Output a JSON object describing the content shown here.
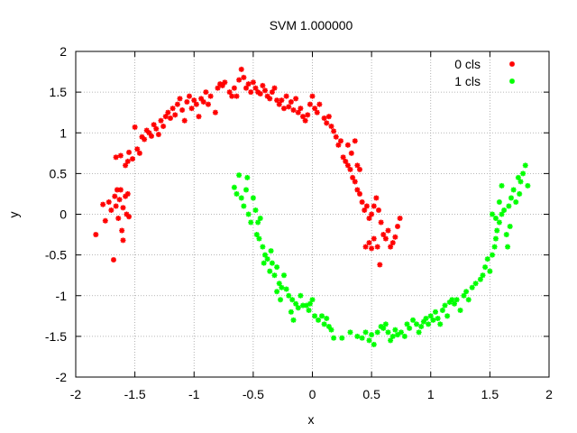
{
  "chart_data": {
    "type": "scatter",
    "title": "SVM 1.000000",
    "xlabel": "x",
    "ylabel": "y",
    "xlim": [
      -2,
      2
    ],
    "ylim": [
      -2,
      2
    ],
    "xticks": [
      "-2",
      "-1.5",
      "-1",
      "-0.5",
      "0",
      "0.5",
      "1",
      "1.5",
      "2"
    ],
    "yticks": [
      "-2",
      "-1.5",
      "-1",
      "-0.5",
      "0",
      "0.5",
      "1",
      "1.5",
      "2"
    ],
    "grid": true,
    "legend_position": "top-right",
    "series": [
      {
        "name": "0 cls",
        "color": "#ff0000",
        "points": [
          [
            -1.83,
            -0.25
          ],
          [
            -1.77,
            0.12
          ],
          [
            -1.75,
            -0.08
          ],
          [
            -1.72,
            0.15
          ],
          [
            -1.7,
            0.05
          ],
          [
            -1.68,
            -0.56
          ],
          [
            -1.67,
            0.22
          ],
          [
            -1.66,
            0.1
          ],
          [
            -1.65,
            0.3
          ],
          [
            -1.64,
            -0.05
          ],
          [
            -1.63,
            0.18
          ],
          [
            -1.62,
            0.3
          ],
          [
            -1.61,
            -0.2
          ],
          [
            -1.6,
            0.08
          ],
          [
            -1.6,
            -0.32
          ],
          [
            -1.58,
            0.22
          ],
          [
            -1.57,
            0.0
          ],
          [
            -1.56,
            0.25
          ],
          [
            -1.55,
            -0.03
          ],
          [
            -1.66,
            0.7
          ],
          [
            -1.62,
            0.72
          ],
          [
            -1.58,
            0.6
          ],
          [
            -1.56,
            0.65
          ],
          [
            -1.55,
            0.76
          ],
          [
            -1.52,
            0.68
          ],
          [
            -1.5,
            1.07
          ],
          [
            -1.48,
            0.8
          ],
          [
            -1.46,
            0.75
          ],
          [
            -1.44,
            0.95
          ],
          [
            -1.42,
            0.92
          ],
          [
            -1.4,
            1.03
          ],
          [
            -1.38,
            1.0
          ],
          [
            -1.36,
            0.96
          ],
          [
            -1.34,
            1.1
          ],
          [
            -1.32,
            1.05
          ],
          [
            -1.3,
            0.98
          ],
          [
            -1.28,
            1.15
          ],
          [
            -1.26,
            1.08
          ],
          [
            -1.24,
            1.2
          ],
          [
            -1.22,
            1.25
          ],
          [
            -1.2,
            1.18
          ],
          [
            -1.18,
            1.3
          ],
          [
            -1.16,
            1.22
          ],
          [
            -1.14,
            1.35
          ],
          [
            -1.12,
            1.42
          ],
          [
            -1.1,
            1.28
          ],
          [
            -1.08,
            1.15
          ],
          [
            -1.06,
            1.38
          ],
          [
            -1.04,
            1.45
          ],
          [
            -1.02,
            1.3
          ],
          [
            -1.0,
            1.4
          ],
          [
            -0.98,
            1.35
          ],
          [
            -0.96,
            1.2
          ],
          [
            -0.94,
            1.42
          ],
          [
            -0.92,
            1.38
          ],
          [
            -0.9,
            1.5
          ],
          [
            -0.88,
            1.35
          ],
          [
            -0.86,
            1.45
          ],
          [
            -0.82,
            1.25
          ],
          [
            -0.8,
            1.55
          ],
          [
            -0.78,
            1.6
          ],
          [
            -0.76,
            1.58
          ],
          [
            -0.74,
            1.62
          ],
          [
            -0.7,
            1.5
          ],
          [
            -0.68,
            1.45
          ],
          [
            -0.66,
            1.55
          ],
          [
            -0.64,
            1.45
          ],
          [
            -0.62,
            1.65
          ],
          [
            -0.6,
            1.78
          ],
          [
            -0.58,
            1.68
          ],
          [
            -0.56,
            1.55
          ],
          [
            -0.54,
            1.6
          ],
          [
            -0.52,
            1.5
          ],
          [
            -0.5,
            1.62
          ],
          [
            -0.48,
            1.55
          ],
          [
            -0.46,
            1.5
          ],
          [
            -0.44,
            1.48
          ],
          [
            -0.42,
            1.58
          ],
          [
            -0.4,
            1.52
          ],
          [
            -0.38,
            1.45
          ],
          [
            -0.36,
            1.42
          ],
          [
            -0.34,
            1.5
          ],
          [
            -0.32,
            1.55
          ],
          [
            -0.3,
            1.4
          ],
          [
            -0.28,
            1.35
          ],
          [
            -0.26,
            1.4
          ],
          [
            -0.24,
            1.3
          ],
          [
            -0.22,
            1.45
          ],
          [
            -0.2,
            1.32
          ],
          [
            -0.18,
            1.38
          ],
          [
            -0.16,
            1.28
          ],
          [
            -0.14,
            1.42
          ],
          [
            -0.12,
            1.25
          ],
          [
            -0.1,
            1.3
          ],
          [
            -0.08,
            1.2
          ],
          [
            -0.06,
            1.15
          ],
          [
            -0.04,
            1.22
          ],
          [
            -0.02,
            1.35
          ],
          [
            0.0,
            1.45
          ],
          [
            0.02,
            1.3
          ],
          [
            0.04,
            1.25
          ],
          [
            0.06,
            1.35
          ],
          [
            0.1,
            1.18
          ],
          [
            0.12,
            1.12
          ],
          [
            0.14,
            1.2
          ],
          [
            0.16,
            1.08
          ],
          [
            0.18,
            1.02
          ],
          [
            0.2,
            0.95
          ],
          [
            0.22,
            0.85
          ],
          [
            0.24,
            0.9
          ],
          [
            0.26,
            0.7
          ],
          [
            0.28,
            0.65
          ],
          [
            0.3,
            0.6
          ],
          [
            0.32,
            0.55
          ],
          [
            0.34,
            0.45
          ],
          [
            0.36,
            0.4
          ],
          [
            0.38,
            0.3
          ],
          [
            0.4,
            0.25
          ],
          [
            0.42,
            0.15
          ],
          [
            0.44,
            0.05
          ],
          [
            0.46,
            0.1
          ],
          [
            0.48,
            -0.05
          ],
          [
            0.5,
            0.0
          ],
          [
            0.52,
            0.1
          ],
          [
            0.54,
            0.2
          ],
          [
            0.56,
            0.05
          ],
          [
            0.58,
            -0.1
          ],
          [
            0.6,
            -0.25
          ],
          [
            0.62,
            -0.3
          ],
          [
            0.64,
            -0.2
          ],
          [
            0.66,
            -0.4
          ],
          [
            0.68,
            -0.35
          ],
          [
            0.7,
            -0.28
          ],
          [
            0.72,
            -0.15
          ],
          [
            0.74,
            -0.05
          ],
          [
            0.45,
            -0.4
          ],
          [
            0.48,
            -0.35
          ],
          [
            0.5,
            -0.42
          ],
          [
            0.52,
            -0.3
          ],
          [
            0.55,
            -0.4
          ],
          [
            0.57,
            -0.62
          ],
          [
            0.38,
            0.6
          ],
          [
            0.4,
            0.55
          ],
          [
            0.36,
            0.9
          ],
          [
            0.33,
            0.75
          ],
          [
            0.3,
            0.85
          ]
        ]
      },
      {
        "name": "1 cls",
        "color": "#00ff00",
        "points": [
          [
            -0.66,
            0.33
          ],
          [
            -0.64,
            0.25
          ],
          [
            -0.62,
            0.48
          ],
          [
            -0.6,
            0.2
          ],
          [
            -0.58,
            0.1
          ],
          [
            -0.56,
            0.3
          ],
          [
            -0.55,
            0.45
          ],
          [
            -0.54,
            0.0
          ],
          [
            -0.52,
            -0.1
          ],
          [
            -0.5,
            0.2
          ],
          [
            -0.48,
            0.05
          ],
          [
            -0.47,
            -0.25
          ],
          [
            -0.46,
            -0.1
          ],
          [
            -0.45,
            -0.3
          ],
          [
            -0.44,
            -0.05
          ],
          [
            -0.42,
            -0.4
          ],
          [
            -0.41,
            -0.6
          ],
          [
            -0.4,
            -0.5
          ],
          [
            -0.38,
            -0.55
          ],
          [
            -0.36,
            -0.7
          ],
          [
            -0.35,
            -0.45
          ],
          [
            -0.34,
            -0.6
          ],
          [
            -0.32,
            -0.75
          ],
          [
            -0.3,
            -0.65
          ],
          [
            -0.3,
            -0.95
          ],
          [
            -0.28,
            -0.85
          ],
          [
            -0.27,
            -1.05
          ],
          [
            -0.26,
            -0.9
          ],
          [
            -0.24,
            -0.75
          ],
          [
            -0.22,
            -0.92
          ],
          [
            -0.2,
            -1.0
          ],
          [
            -0.18,
            -1.2
          ],
          [
            -0.17,
            -1.05
          ],
          [
            -0.16,
            -1.3
          ],
          [
            -0.14,
            -1.1
          ],
          [
            -0.12,
            -1.15
          ],
          [
            -0.1,
            -1.0
          ],
          [
            -0.08,
            -1.12
          ],
          [
            -0.05,
            -1.12
          ],
          [
            -0.03,
            -1.18
          ],
          [
            -0.02,
            -1.1
          ],
          [
            0.0,
            -1.05
          ],
          [
            0.02,
            -1.25
          ],
          [
            0.05,
            -1.3
          ],
          [
            0.08,
            -1.25
          ],
          [
            0.1,
            -1.35
          ],
          [
            0.12,
            -1.28
          ],
          [
            0.14,
            -1.38
          ],
          [
            0.16,
            -1.42
          ],
          [
            0.18,
            -1.52
          ],
          [
            0.25,
            -1.52
          ],
          [
            0.32,
            -1.45
          ],
          [
            0.38,
            -1.5
          ],
          [
            0.42,
            -1.52
          ],
          [
            0.45,
            -1.45
          ],
          [
            0.48,
            -1.55
          ],
          [
            0.5,
            -1.48
          ],
          [
            0.52,
            -1.6
          ],
          [
            0.55,
            -1.45
          ],
          [
            0.58,
            -1.38
          ],
          [
            0.6,
            -1.4
          ],
          [
            0.62,
            -1.35
          ],
          [
            0.64,
            -1.45
          ],
          [
            0.66,
            -1.55
          ],
          [
            0.68,
            -1.5
          ],
          [
            0.7,
            -1.42
          ],
          [
            0.72,
            -1.48
          ],
          [
            0.75,
            -1.45
          ],
          [
            0.78,
            -1.5
          ],
          [
            0.8,
            -1.35
          ],
          [
            0.82,
            -1.4
          ],
          [
            0.85,
            -1.3
          ],
          [
            0.88,
            -1.35
          ],
          [
            0.9,
            -1.45
          ],
          [
            0.92,
            -1.38
          ],
          [
            0.94,
            -1.32
          ],
          [
            0.96,
            -1.28
          ],
          [
            0.98,
            -1.35
          ],
          [
            1.0,
            -1.25
          ],
          [
            1.02,
            -1.3
          ],
          [
            1.04,
            -1.2
          ],
          [
            1.06,
            -1.28
          ],
          [
            1.08,
            -1.35
          ],
          [
            1.1,
            -1.18
          ],
          [
            1.12,
            -1.12
          ],
          [
            1.14,
            -1.25
          ],
          [
            1.16,
            -1.08
          ],
          [
            1.18,
            -1.05
          ],
          [
            1.2,
            -1.1
          ],
          [
            1.22,
            -1.05
          ],
          [
            1.25,
            -1.18
          ],
          [
            1.28,
            -1.0
          ],
          [
            1.3,
            -0.95
          ],
          [
            1.32,
            -1.05
          ],
          [
            1.35,
            -0.9
          ],
          [
            1.38,
            -0.85
          ],
          [
            1.42,
            -0.8
          ],
          [
            1.44,
            -0.75
          ],
          [
            1.46,
            -0.65
          ],
          [
            1.48,
            -0.55
          ],
          [
            1.5,
            -0.7
          ],
          [
            1.52,
            -0.5
          ],
          [
            1.54,
            -0.4
          ],
          [
            1.55,
            -0.3
          ],
          [
            1.56,
            -0.2
          ],
          [
            1.58,
            -0.1
          ],
          [
            1.6,
            0.0
          ],
          [
            1.62,
            0.05
          ],
          [
            1.64,
            -0.25
          ],
          [
            1.65,
            -0.4
          ],
          [
            1.66,
            0.1
          ],
          [
            1.67,
            -0.15
          ],
          [
            1.68,
            0.2
          ],
          [
            1.7,
            0.3
          ],
          [
            1.72,
            0.15
          ],
          [
            1.74,
            0.45
          ],
          [
            1.75,
            0.25
          ],
          [
            1.76,
            0.4
          ],
          [
            1.78,
            0.5
          ],
          [
            1.8,
            0.6
          ],
          [
            1.82,
            0.35
          ],
          [
            1.6,
            0.35
          ],
          [
            1.58,
            0.15
          ],
          [
            1.52,
            0.0
          ],
          [
            1.55,
            -0.05
          ]
        ]
      }
    ]
  }
}
